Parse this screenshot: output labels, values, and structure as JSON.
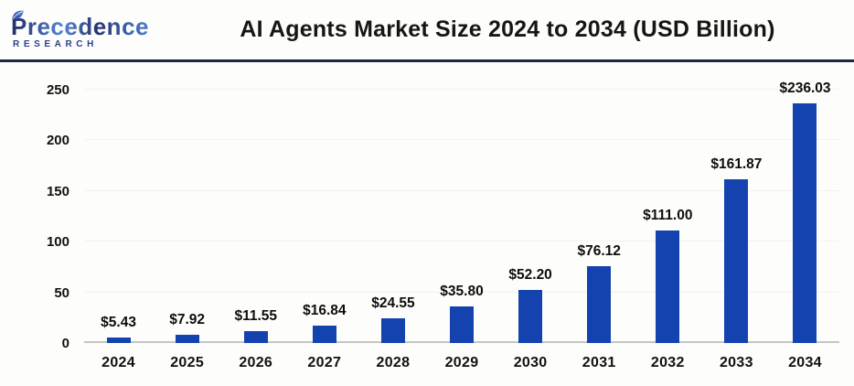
{
  "header": {
    "logo": {
      "brand": "Precedence",
      "sub": "RESEARCH"
    },
    "title": "AI Agents Market Size 2024 to 2034 (USD Billion)"
  },
  "colors": {
    "bar": "#1443af",
    "divider": "#1d2540",
    "axis_line": "#c4c4c4",
    "gridline": "#f3f2f0",
    "logo_navy": "#2a3f8f",
    "logo_blue": "#5585d8",
    "text": "#111111"
  },
  "chart_data": {
    "type": "bar",
    "title": "AI Agents Market Size 2024 to 2034 (USD Billion)",
    "xlabel": "",
    "ylabel": "",
    "categories": [
      "2024",
      "2025",
      "2026",
      "2027",
      "2028",
      "2029",
      "2030",
      "2031",
      "2032",
      "2033",
      "2034"
    ],
    "values": [
      5.43,
      7.92,
      11.55,
      16.84,
      24.55,
      35.8,
      52.2,
      76.12,
      111.0,
      161.87,
      236.03
    ],
    "value_labels": [
      "$5.43",
      "$7.92",
      "$11.55",
      "$16.84",
      "$24.55",
      "$35.80",
      "$52.20",
      "$76.12",
      "$111.00",
      "$161.87",
      "$236.03"
    ],
    "ylim": [
      0,
      250
    ],
    "yticks": [
      0,
      50,
      100,
      150,
      200,
      250
    ],
    "grid": true,
    "legend": false,
    "bar_color": "#1443af",
    "unit": "USD Billion"
  }
}
